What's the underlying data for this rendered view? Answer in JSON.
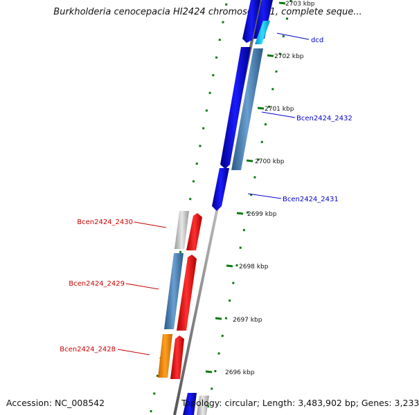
{
  "title": "Burkholderia cenocepacia HI2424 chromosome 1, complete seque...",
  "footer": {
    "accession": "Accession: NC_008542",
    "topology": "Topology: circular; Length: 3,483,902 bp; Genes: 3,233"
  },
  "colors": {
    "forward_gene": "#ff0000",
    "reverse_gene": "#0000ff",
    "gc_skew": "#006400",
    "label_forward": "#cc0000",
    "label_reverse": "#0000cc",
    "backbone": "#888888"
  },
  "ticks": [
    "2703 kbp",
    "2702 kbp",
    "2701 kbp",
    "2700 kbp",
    "2699 kbp",
    "2698 kbp",
    "2697 kbp",
    "2696 kbp"
  ],
  "gene_labels": {
    "dcd": "dcd",
    "g2432": "Bcen2424_2432",
    "g2431": "Bcen2424_2431",
    "g2430": "Bcen2424_2430",
    "g2429": "Bcen2424_2429",
    "g2428": "Bcen2424_2428"
  }
}
